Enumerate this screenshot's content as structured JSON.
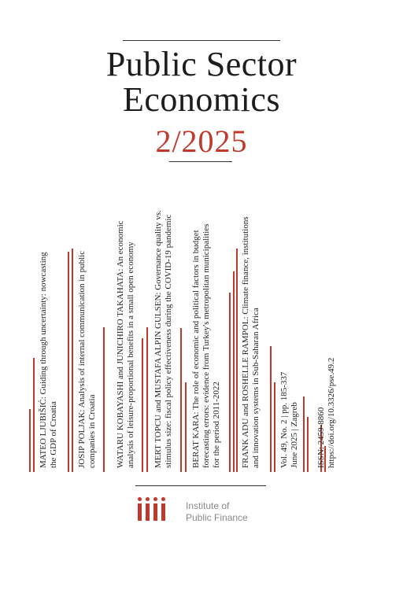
{
  "journal": {
    "title_line1": "Public Sector",
    "title_line2": "Economics",
    "issue": "2/2025"
  },
  "articles": [
    {
      "line1": "MATEO LJUBIŠIĆ: Guiding through uncertainty: nowcasting",
      "line2": "the GDP of Croatia"
    },
    {
      "line1": "JOSIP POLJAK: Analysis of internal communication in public",
      "line2": "companies in Croatia"
    },
    {
      "line1": "WATARU KOBAYASHI and JUNICHIRO TAKAHATA: An economic",
      "line2": "analysis of leisure-proportional benefits in a small open economy"
    },
    {
      "line1": "MERT TOPCU and MUSTAFA ALPIN GULSEN: Governance quality vs.",
      "line2": "stimulus size: fiscal policy effectiveness during the COVID-19 pandemic"
    },
    {
      "line1": "BERAT KARA: The role of economic and political factors in budget",
      "line2": "forecasting errors: evidence from Turkey's metropolitan municipalities",
      "line3": "for the period 2011-2022"
    },
    {
      "line1": "FRANK ADU and ROSHELLE RAMPOL: Climate finance, institutions",
      "line2": "and innovation systems in Sub-Saharan Africa"
    }
  ],
  "issue_info": {
    "line1": "Vol. 49, No. 2 | pp. 185-337",
    "line2": "June 2025 | Zagreb"
  },
  "identifiers": {
    "line1": "ISSN: 2459-8860",
    "line2": "https://doi.org/10.3326/pse.49.2"
  },
  "publisher": {
    "line1": "Institute of",
    "line2": "Public Finance"
  },
  "colors": {
    "accent": "#c0392b",
    "text": "#1d1d1d",
    "publisher_text": "#8a8a8a"
  }
}
